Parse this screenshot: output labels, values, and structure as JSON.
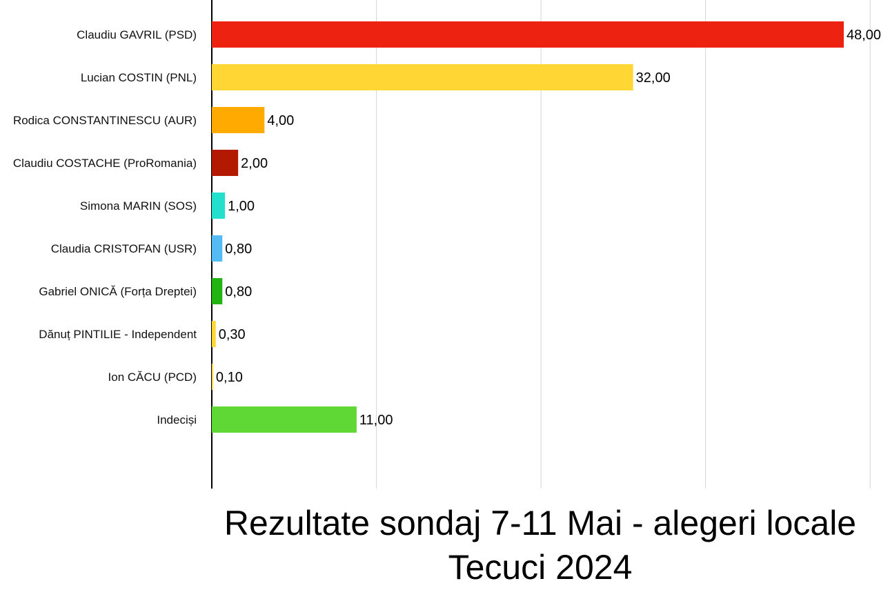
{
  "chart_data": {
    "type": "bar",
    "orientation": "horizontal",
    "title": "Rezultate sondaj 7-11 Mai - alegeri locale Tecuci 2024",
    "xlabel": "",
    "ylabel": "",
    "xlim": [
      0,
      48
    ],
    "grid": true,
    "legend": "none",
    "categories": [
      "Claudiu GAVRIL (PSD)",
      "Lucian COSTIN (PNL)",
      "Rodica CONSTANTINESCU (AUR)",
      "Claudiu COSTACHE (ProRomania)",
      "Simona MARIN (SOS)",
      "Claudia CRISTOFAN (USR)",
      "Gabriel ONICĂ (Forța Dreptei)",
      "Dănuț PINTILIE - Independent",
      "Ion CĂCU (PCD)",
      "Indeciși"
    ],
    "values": [
      48.0,
      32.0,
      4.0,
      2.0,
      1.0,
      0.8,
      0.8,
      0.3,
      0.1,
      11.0
    ],
    "value_labels": [
      "48,00",
      "32,00",
      "4,00",
      "2,00",
      "1,00",
      "0,80",
      "0,80",
      "0,30",
      "0,10",
      "11,00"
    ],
    "colors": [
      "#ee2211",
      "#ffd633",
      "#ffaa00",
      "#b31800",
      "#22e0cc",
      "#55bbf5",
      "#22b511",
      "#ffd633",
      "#ffd633",
      "#5fd835"
    ]
  }
}
